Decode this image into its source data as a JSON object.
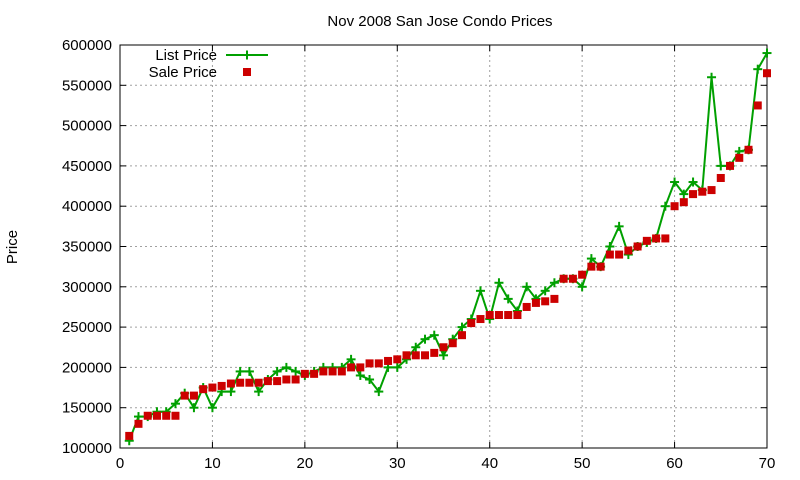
{
  "chart_data": {
    "type": "line",
    "title": "Nov 2008 San Jose Condo Prices",
    "xlabel": "",
    "ylabel": "Price",
    "xlim": [
      0,
      70
    ],
    "ylim": [
      100000,
      600000
    ],
    "xticks": [
      "0",
      "10",
      "20",
      "30",
      "40",
      "50",
      "60",
      "70"
    ],
    "yticks": [
      "100000",
      "150000",
      "200000",
      "250000",
      "300000",
      "350000",
      "400000",
      "450000",
      "500000",
      "550000",
      "600000"
    ],
    "grid": true,
    "legend_position": "top-left",
    "x": [
      1,
      2,
      3,
      4,
      5,
      6,
      7,
      8,
      9,
      10,
      11,
      12,
      13,
      14,
      15,
      16,
      17,
      18,
      19,
      20,
      21,
      22,
      23,
      24,
      25,
      26,
      27,
      28,
      29,
      30,
      31,
      32,
      33,
      34,
      35,
      36,
      37,
      38,
      39,
      40,
      41,
      42,
      43,
      44,
      45,
      46,
      47,
      48,
      49,
      50,
      51,
      52,
      53,
      54,
      55,
      56,
      57,
      58,
      59,
      60,
      61,
      62,
      63,
      64,
      65,
      66,
      67,
      68,
      69,
      70
    ],
    "series": [
      {
        "name": "List Price",
        "style": "linespoints",
        "color": "#00a000",
        "marker": "plus",
        "values": [
          109000,
          139000,
          139000,
          145000,
          145000,
          155000,
          168000,
          150000,
          175000,
          150000,
          170000,
          170000,
          195000,
          195000,
          170000,
          185000,
          195000,
          200000,
          195000,
          190000,
          195000,
          200000,
          200000,
          200000,
          210000,
          190000,
          185000,
          170000,
          200000,
          200000,
          210000,
          225000,
          235000,
          240000,
          215000,
          235000,
          250000,
          260000,
          295000,
          260000,
          305000,
          285000,
          270000,
          300000,
          285000,
          295000,
          305000,
          310000,
          310000,
          300000,
          335000,
          325000,
          350000,
          375000,
          340000,
          350000,
          355000,
          360000,
          400000,
          430000,
          415000,
          430000,
          420000,
          560000,
          450000,
          450000,
          468000,
          470000,
          570000,
          590000
        ]
      },
      {
        "name": "Sale Price",
        "style": "points",
        "color": "#cc0000",
        "marker": "square",
        "values": [
          115000,
          130000,
          140000,
          140000,
          140000,
          140000,
          165000,
          165000,
          173000,
          175000,
          177000,
          180000,
          181000,
          181000,
          181000,
          183000,
          183000,
          185000,
          185000,
          192000,
          192000,
          195000,
          195000,
          195000,
          200000,
          200000,
          205000,
          205000,
          208000,
          210000,
          215000,
          215000,
          215000,
          218000,
          225000,
          230000,
          240000,
          255000,
          260000,
          265000,
          265000,
          265000,
          265000,
          275000,
          280000,
          282000,
          285000,
          310000,
          310000,
          315000,
          325000,
          325000,
          340000,
          340000,
          345000,
          350000,
          357000,
          360000,
          360000,
          400000,
          405000,
          415000,
          418000,
          420000,
          435000,
          450000,
          460000,
          470000,
          525000,
          565000
        ]
      }
    ]
  }
}
